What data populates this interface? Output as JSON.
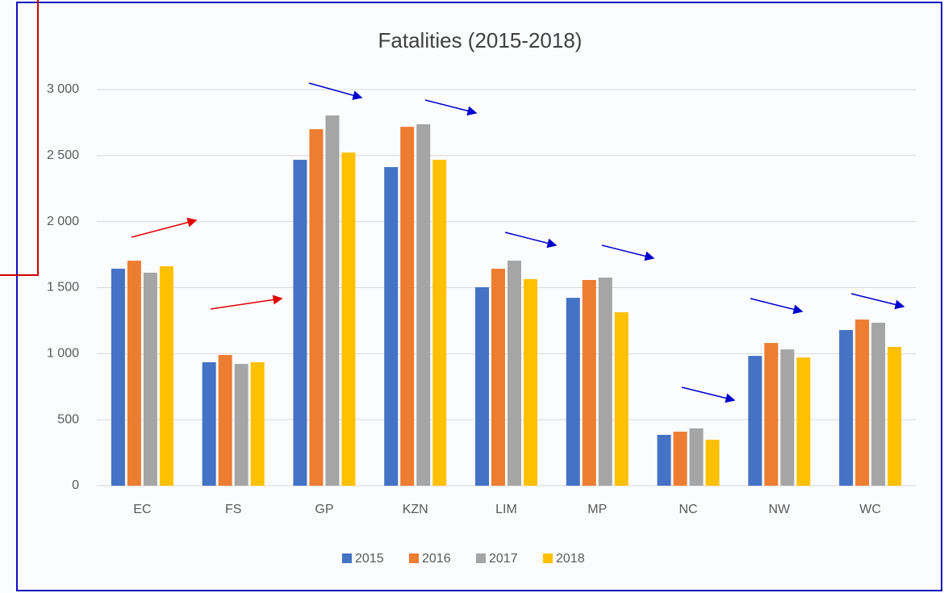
{
  "chart_data": {
    "type": "bar",
    "title": "Fatalities (2015-2018)",
    "categories": [
      "EC",
      "FS",
      "GP",
      "KZN",
      "LIM",
      "MP",
      "NC",
      "NW",
      "WC"
    ],
    "series": [
      {
        "name": "2015",
        "color": "#4472c4",
        "values": [
          1643,
          935,
          2468,
          2413,
          1503,
          1423,
          385,
          983,
          1179
        ]
      },
      {
        "name": "2016",
        "color": "#ed7d31",
        "values": [
          1704,
          990,
          2700,
          2718,
          1643,
          1558,
          409,
          1081,
          1258
        ]
      },
      {
        "name": "2017",
        "color": "#a5a5a5",
        "values": [
          1613,
          922,
          2804,
          2737,
          1704,
          1576,
          434,
          1032,
          1234
        ]
      },
      {
        "name": "2018",
        "color": "#ffc000",
        "values": [
          1662,
          935,
          2523,
          2468,
          1564,
          1313,
          348,
          971,
          1051
        ]
      }
    ],
    "ylim": [
      0,
      3000
    ],
    "yticks": [
      0,
      500,
      {
        "value": 1000,
        "label": "1 000"
      },
      {
        "value": 1500,
        "label": "1 500"
      },
      {
        "value": 2000,
        "label": "2 000"
      },
      {
        "value": 2500,
        "label": "2 500"
      },
      {
        "value": 3000,
        "label": "3 000"
      }
    ],
    "grid": true,
    "legend": "bottom"
  }
}
